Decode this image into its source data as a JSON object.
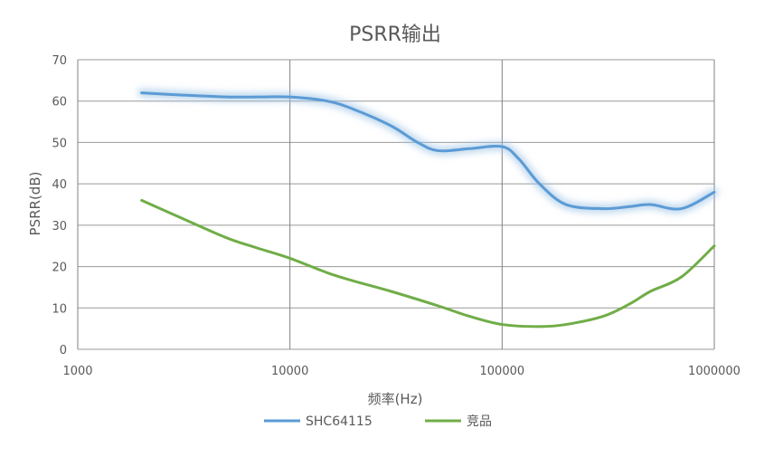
{
  "chart_data": {
    "type": "line",
    "title": "PSRR输出",
    "xlabel": "频率(Hz)",
    "ylabel": "PSRR(dB)",
    "x_scale": "log",
    "xlim": [
      1000,
      1000000
    ],
    "ylim": [
      0,
      70
    ],
    "x_ticks": [
      "1000",
      "10000",
      "100000",
      "1000000"
    ],
    "y_ticks": [
      "0",
      "10",
      "20",
      "30",
      "40",
      "50",
      "60",
      "70"
    ],
    "grid": true,
    "legend_position": "bottom",
    "series": [
      {
        "name": "SHC64115",
        "color": "#5B9BD5",
        "glow": true,
        "x": [
          2000,
          3000,
          5000,
          7000,
          10000,
          15000,
          20000,
          30000,
          40000,
          50000,
          70000,
          100000,
          120000,
          150000,
          200000,
          300000,
          400000,
          500000,
          700000,
          1000000
        ],
        "y": [
          62,
          61.5,
          61,
          61,
          61,
          60,
          58,
          54,
          50,
          48,
          48.5,
          49,
          46,
          40,
          35,
          34,
          34.5,
          35,
          34,
          38
        ]
      },
      {
        "name": "竞品",
        "color": "#70AD47",
        "glow": false,
        "x": [
          2000,
          3000,
          5000,
          7000,
          10000,
          15000,
          20000,
          30000,
          50000,
          70000,
          100000,
          150000,
          200000,
          300000,
          400000,
          500000,
          700000,
          1000000
        ],
        "y": [
          36,
          32,
          27,
          24.5,
          22,
          18.5,
          16.5,
          14,
          10.5,
          8,
          6,
          5.5,
          6,
          8,
          11,
          14,
          17.5,
          25
        ]
      }
    ]
  }
}
